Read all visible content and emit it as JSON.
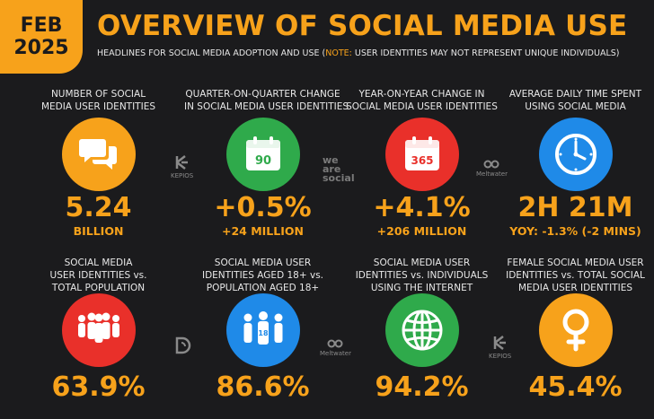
{
  "header": {
    "month": "FEB",
    "year": "2025",
    "title": "OVERVIEW OF SOCIAL MEDIA USE",
    "subtitle_pre": "HEADLINES FOR SOCIAL MEDIA ADOPTION AND USE (",
    "subtitle_note": "NOTE:",
    "subtitle_post": " USER IDENTITIES MAY NOT REPRESENT UNIQUE INDIVIDUALS)"
  },
  "stats": [
    {
      "label1": "NUMBER OF SOCIAL",
      "label2": "MEDIA USER IDENTITIES",
      "value": "5.24",
      "sub": "BILLION",
      "icon": "speech-bubbles-icon",
      "color": "#f7a21b"
    },
    {
      "label1": "QUARTER-ON-QUARTER CHANGE",
      "label2": "IN SOCIAL MEDIA USER IDENTITIES",
      "value": "+0.5%",
      "sub": "+24 MILLION",
      "icon": "calendar-90-icon",
      "icon_text": "90",
      "color": "#2faa4b"
    },
    {
      "label1": "YEAR-ON-YEAR CHANGE IN",
      "label2": "SOCIAL MEDIA USER IDENTITIES",
      "value": "+4.1%",
      "sub": "+206 MILLION",
      "icon": "calendar-365-icon",
      "icon_text": "365",
      "color": "#e9302a"
    },
    {
      "label1": "AVERAGE DAILY TIME SPENT",
      "label2": "USING SOCIAL MEDIA",
      "value": "2H 21M",
      "sub": "YOY: -1.3% (-2 MINS)",
      "icon": "clock-icon",
      "color": "#1f8ae8"
    },
    {
      "label1": "SOCIAL MEDIA",
      "label2": "USER IDENTITIES vs.",
      "label3": "TOTAL POPULATION",
      "value": "63.9%",
      "icon": "crowd-icon",
      "color": "#e9302a"
    },
    {
      "label1": "SOCIAL MEDIA USER",
      "label2": "IDENTITIES AGED 18+ vs.",
      "label3": "POPULATION AGED 18+",
      "value": "86.6%",
      "icon": "adults-18-icon",
      "icon_text": "18",
      "color": "#1f8ae8"
    },
    {
      "label1": "SOCIAL MEDIA USER",
      "label2": "IDENTITIES vs. INDIVIDUALS",
      "label3": "USING THE INTERNET",
      "value": "94.2%",
      "icon": "globe-icon",
      "color": "#2faa4b"
    },
    {
      "label1": "FEMALE SOCIAL MEDIA USER",
      "label2": "IDENTITIES vs. TOTAL SOCIAL",
      "label3": "MEDIA USER IDENTITIES",
      "value": "45.4%",
      "icon": "female-icon",
      "color": "#f7a21b"
    }
  ],
  "logos": {
    "kepios": "KEPIOS",
    "wearesocial_1": "we",
    "wearesocial_2": "are",
    "wearesocial_3": "social",
    "meltwater": "Meltwater"
  }
}
